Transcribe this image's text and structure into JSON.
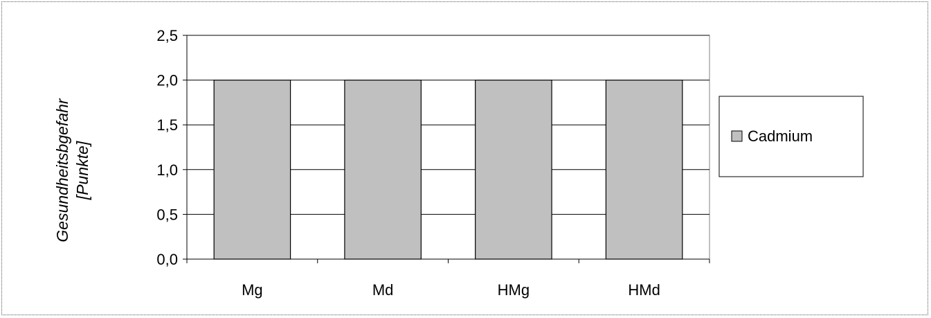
{
  "chart_data": {
    "type": "bar",
    "categories": [
      "Mg",
      "Md",
      "HMg",
      "HMd"
    ],
    "series": [
      {
        "name": "Cadmium",
        "values": [
          2.0,
          2.0,
          2.0,
          2.0
        ],
        "color": "#c0c0c0"
      }
    ],
    "ylabel_line1": "Gesundheitsbgefahr",
    "ylabel_line2": "[Punkte]",
    "xlabel": "",
    "ylim": [
      0,
      2.5
    ],
    "yticks": [
      0,
      0.5,
      1.0,
      1.5,
      2.0,
      2.5
    ],
    "ytick_labels": [
      "0,0",
      "0,5",
      "1,0",
      "1,5",
      "2,0",
      "2,5"
    ],
    "grid": true,
    "legend_position": "right"
  }
}
